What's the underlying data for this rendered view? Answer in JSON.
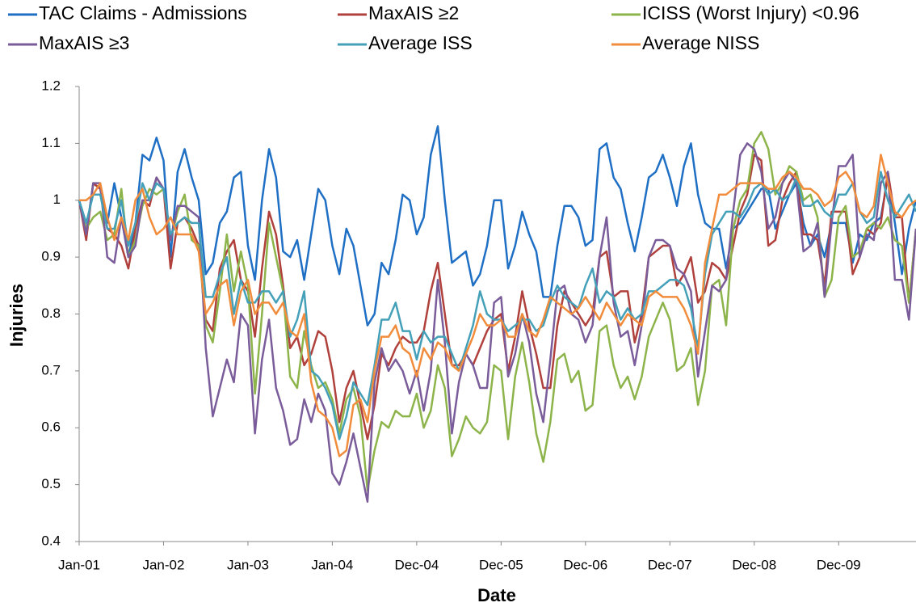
{
  "chart_data": {
    "type": "line",
    "x_label": "Date",
    "y_label": "Injuries",
    "legend": "top",
    "grid": false,
    "categories": [
      "Jan-01",
      null,
      null,
      null,
      null,
      null,
      null,
      null,
      null,
      null,
      null,
      null,
      "Jan-02",
      null,
      null,
      null,
      null,
      null,
      null,
      null,
      null,
      null,
      null,
      null,
      "Jan-03",
      null,
      null,
      null,
      null,
      null,
      null,
      null,
      null,
      null,
      null,
      null,
      "Jan-04",
      null,
      null,
      null,
      null,
      null,
      null,
      null,
      null,
      null,
      null,
      null,
      "Dec-04",
      null,
      null,
      null,
      null,
      null,
      null,
      null,
      null,
      null,
      null,
      null,
      "Dec-05",
      null,
      null,
      null,
      null,
      null,
      null,
      null,
      null,
      null,
      null,
      null,
      "Dec-06",
      null,
      null,
      null,
      null,
      null,
      null,
      null,
      null,
      null,
      null,
      null,
      "Dec-07",
      null,
      null,
      null,
      null,
      null,
      null,
      null,
      null,
      null,
      null,
      null,
      "Dec-08",
      null,
      null,
      null,
      null,
      null,
      null,
      null,
      null,
      null,
      null,
      null,
      "Dec-09",
      null,
      null,
      null,
      null,
      null,
      null,
      null,
      null,
      null,
      null,
      null
    ],
    "ylim": [
      0.4,
      1.2
    ],
    "yticks": [
      0.4,
      0.5,
      0.6,
      0.7,
      0.8,
      0.9,
      1,
      1.1,
      1.2
    ],
    "series": [
      {
        "name": "TAC Claims - Admissions",
        "color": "#1f6fc5",
        "values": [
          1.0,
          0.94,
          1.03,
          1.02,
          0.96,
          1.03,
          0.97,
          0.9,
          0.96,
          1.08,
          1.07,
          1.11,
          1.07,
          0.9,
          1.05,
          1.09,
          1.04,
          1.0,
          0.87,
          0.89,
          0.96,
          0.98,
          1.04,
          1.05,
          0.92,
          0.86,
          1.0,
          1.09,
          1.04,
          0.91,
          0.9,
          0.93,
          0.86,
          0.94,
          1.02,
          1.0,
          0.92,
          0.87,
          0.95,
          0.92,
          0.85,
          0.78,
          0.8,
          0.89,
          0.87,
          0.93,
          1.01,
          1.0,
          0.94,
          0.97,
          1.08,
          1.13,
          1.0,
          0.89,
          0.9,
          0.91,
          0.85,
          0.87,
          0.92,
          1.0,
          1.0,
          0.88,
          0.92,
          0.98,
          0.94,
          0.91,
          0.83,
          0.83,
          0.92,
          0.99,
          0.99,
          0.97,
          0.92,
          0.93,
          1.09,
          1.1,
          1.04,
          1.02,
          0.96,
          0.91,
          0.97,
          1.04,
          1.05,
          1.08,
          1.04,
          0.99,
          1.06,
          1.1,
          1.01,
          0.96,
          0.95,
          0.95,
          0.88,
          0.95,
          0.96,
          0.98,
          1.0,
          1.02,
          1.02,
          0.95,
          0.98,
          1.01,
          1.03,
          0.96,
          0.92,
          0.94,
          0.9,
          0.96,
          0.96,
          0.96,
          0.89,
          0.94,
          0.93,
          0.96,
          0.97,
          1.04,
          0.96,
          0.87,
          0.95,
          1.0
        ]
      },
      {
        "name": "MaxAIS ≥2",
        "color": "#b0403c",
        "values": [
          1.0,
          0.93,
          1.03,
          1.02,
          0.95,
          0.94,
          0.92,
          0.88,
          0.95,
          1.0,
          0.99,
          1.04,
          1.02,
          0.88,
          0.96,
          0.97,
          0.95,
          0.92,
          0.79,
          0.77,
          0.88,
          0.91,
          0.93,
          0.86,
          0.84,
          0.76,
          0.88,
          0.98,
          0.94,
          0.85,
          0.74,
          0.76,
          0.71,
          0.73,
          0.77,
          0.76,
          0.7,
          0.61,
          0.67,
          0.7,
          0.64,
          0.58,
          0.64,
          0.73,
          0.71,
          0.74,
          0.76,
          0.75,
          0.75,
          0.77,
          0.84,
          0.89,
          0.8,
          0.71,
          0.71,
          0.73,
          0.71,
          0.74,
          0.77,
          0.79,
          0.8,
          0.7,
          0.76,
          0.84,
          0.78,
          0.73,
          0.67,
          0.67,
          0.78,
          0.84,
          0.82,
          0.8,
          0.78,
          0.8,
          0.9,
          0.91,
          0.83,
          0.84,
          0.84,
          0.75,
          0.8,
          0.9,
          0.91,
          0.92,
          0.92,
          0.85,
          0.87,
          0.9,
          0.82,
          0.84,
          0.89,
          0.88,
          0.86,
          0.92,
          0.98,
          1.01,
          1.08,
          1.07,
          0.92,
          0.93,
          1.0,
          1.03,
          1.05,
          0.94,
          0.94,
          0.93,
          0.85,
          0.98,
          0.98,
          0.98,
          0.87,
          0.9,
          0.95,
          0.94,
          0.96,
          1.05,
          0.97,
          0.97,
          0.82,
          0.95
        ]
      },
      {
        "name": "ICISS (Worst Injury) <0.96",
        "color": "#8db44a",
        "values": [
          1.0,
          0.95,
          0.97,
          0.98,
          0.93,
          0.94,
          1.02,
          0.9,
          0.93,
          0.99,
          1.02,
          1.01,
          1.02,
          0.93,
          0.98,
          1.01,
          0.93,
          0.92,
          0.78,
          0.75,
          0.84,
          0.94,
          0.84,
          0.91,
          0.85,
          0.66,
          0.8,
          0.96,
          0.9,
          0.84,
          0.69,
          0.67,
          0.77,
          0.71,
          0.67,
          0.68,
          0.65,
          0.59,
          0.65,
          0.67,
          0.62,
          0.49,
          0.56,
          0.61,
          0.6,
          0.63,
          0.62,
          0.62,
          0.66,
          0.6,
          0.63,
          0.71,
          0.67,
          0.55,
          0.58,
          0.62,
          0.6,
          0.59,
          0.61,
          0.71,
          0.7,
          0.58,
          0.69,
          0.75,
          0.68,
          0.59,
          0.54,
          0.61,
          0.72,
          0.73,
          0.68,
          0.7,
          0.63,
          0.64,
          0.77,
          0.78,
          0.71,
          0.67,
          0.69,
          0.65,
          0.69,
          0.76,
          0.79,
          0.82,
          0.79,
          0.7,
          0.71,
          0.74,
          0.64,
          0.7,
          0.85,
          0.86,
          0.78,
          0.95,
          1.0,
          1.02,
          1.1,
          1.12,
          1.09,
          1.01,
          1.03,
          1.06,
          1.05,
          1.0,
          1.01,
          0.97,
          0.83,
          0.86,
          0.97,
          0.99,
          0.9,
          0.91,
          0.95,
          0.96,
          0.95,
          0.97,
          0.93,
          0.92,
          0.82,
          0.95
        ]
      },
      {
        "name": "MaxAIS ≥3",
        "color": "#7a5c9a",
        "values": [
          1.0,
          0.94,
          1.03,
          1.03,
          0.9,
          0.89,
          0.97,
          0.9,
          0.92,
          1.0,
          1.0,
          1.04,
          1.02,
          0.93,
          0.99,
          0.99,
          0.98,
          0.97,
          0.74,
          0.62,
          0.67,
          0.72,
          0.68,
          0.8,
          0.78,
          0.59,
          0.72,
          0.79,
          0.67,
          0.63,
          0.57,
          0.58,
          0.65,
          0.61,
          0.66,
          0.63,
          0.52,
          0.5,
          0.54,
          0.59,
          0.53,
          0.47,
          0.68,
          0.74,
          0.7,
          0.72,
          0.7,
          0.66,
          0.7,
          0.63,
          0.7,
          0.86,
          0.75,
          0.59,
          0.68,
          0.73,
          0.71,
          0.67,
          0.67,
          0.82,
          0.83,
          0.69,
          0.73,
          0.8,
          0.75,
          0.66,
          0.61,
          0.72,
          0.84,
          0.85,
          0.8,
          0.79,
          0.75,
          0.78,
          0.9,
          0.97,
          0.82,
          0.76,
          0.77,
          0.71,
          0.78,
          0.9,
          0.93,
          0.93,
          0.92,
          0.88,
          0.87,
          0.84,
          0.69,
          0.77,
          0.85,
          0.84,
          0.86,
          0.98,
          1.08,
          1.1,
          1.09,
          1.05,
          0.95,
          0.97,
          1.03,
          1.05,
          1.03,
          0.91,
          0.92,
          0.96,
          0.83,
          0.96,
          1.06,
          1.06,
          1.08,
          0.9,
          0.94,
          0.93,
          1.03,
          1.05,
          0.86,
          0.86,
          0.79,
          0.95
        ]
      },
      {
        "name": "Average ISS",
        "color": "#44a0b8",
        "values": [
          1.0,
          0.96,
          1.01,
          1.01,
          0.95,
          0.95,
          1.0,
          0.92,
          0.96,
          1.03,
          1.0,
          1.03,
          1.02,
          0.94,
          0.96,
          0.97,
          0.96,
          0.96,
          0.83,
          0.83,
          0.87,
          0.9,
          0.8,
          0.86,
          0.82,
          0.82,
          0.84,
          0.84,
          0.82,
          0.84,
          0.76,
          0.79,
          0.84,
          0.7,
          0.69,
          0.67,
          0.64,
          0.58,
          0.62,
          0.68,
          0.66,
          0.64,
          0.71,
          0.79,
          0.79,
          0.82,
          0.77,
          0.77,
          0.72,
          0.77,
          0.75,
          0.76,
          0.76,
          0.73,
          0.7,
          0.74,
          0.78,
          0.84,
          0.8,
          0.79,
          0.79,
          0.77,
          0.78,
          0.79,
          0.79,
          0.77,
          0.78,
          0.82,
          0.85,
          0.83,
          0.82,
          0.81,
          0.85,
          0.88,
          0.82,
          0.84,
          0.83,
          0.79,
          0.81,
          0.79,
          0.8,
          0.84,
          0.84,
          0.85,
          0.86,
          0.86,
          0.85,
          0.81,
          0.74,
          0.87,
          0.94,
          0.96,
          0.98,
          0.98,
          0.97,
          0.99,
          1.02,
          1.03,
          1.01,
          1.02,
          1.0,
          1.01,
          1.04,
          0.99,
          0.99,
          1.0,
          0.98,
          0.97,
          1.01,
          1.01,
          1.03,
          0.98,
          0.96,
          0.97,
          1.05,
          1.0,
          0.97,
          0.99,
          1.01,
          0.98
        ]
      },
      {
        "name": "Average NISS",
        "color": "#f08c3c",
        "values": [
          1.0,
          1.0,
          1.01,
          1.03,
          0.97,
          0.93,
          0.97,
          0.93,
          1.0,
          1.02,
          0.97,
          0.94,
          0.95,
          0.97,
          0.94,
          0.94,
          0.94,
          0.91,
          0.8,
          0.82,
          0.85,
          0.86,
          0.78,
          0.84,
          0.86,
          0.8,
          0.82,
          0.82,
          0.8,
          0.82,
          0.77,
          0.76,
          0.8,
          0.68,
          0.63,
          0.62,
          0.6,
          0.55,
          0.56,
          0.64,
          0.65,
          0.61,
          0.7,
          0.76,
          0.76,
          0.78,
          0.74,
          0.73,
          0.69,
          0.74,
          0.72,
          0.75,
          0.74,
          0.71,
          0.7,
          0.73,
          0.76,
          0.8,
          0.78,
          0.78,
          0.79,
          0.76,
          0.76,
          0.8,
          0.77,
          0.76,
          0.79,
          0.83,
          0.82,
          0.81,
          0.8,
          0.81,
          0.83,
          0.81,
          0.79,
          0.82,
          0.8,
          0.78,
          0.8,
          0.79,
          0.78,
          0.83,
          0.84,
          0.83,
          0.83,
          0.83,
          0.81,
          0.78,
          0.73,
          0.89,
          0.95,
          1.01,
          1.01,
          1.02,
          1.03,
          1.03,
          1.03,
          1.03,
          1.02,
          1.02,
          1.04,
          1.05,
          1.04,
          1.02,
          1.02,
          1.01,
          0.99,
          1.0,
          1.04,
          1.05,
          1.03,
          0.98,
          0.97,
          0.99,
          1.08,
          1.03,
          0.98,
          0.97,
          0.99,
          1.0
        ]
      }
    ]
  }
}
